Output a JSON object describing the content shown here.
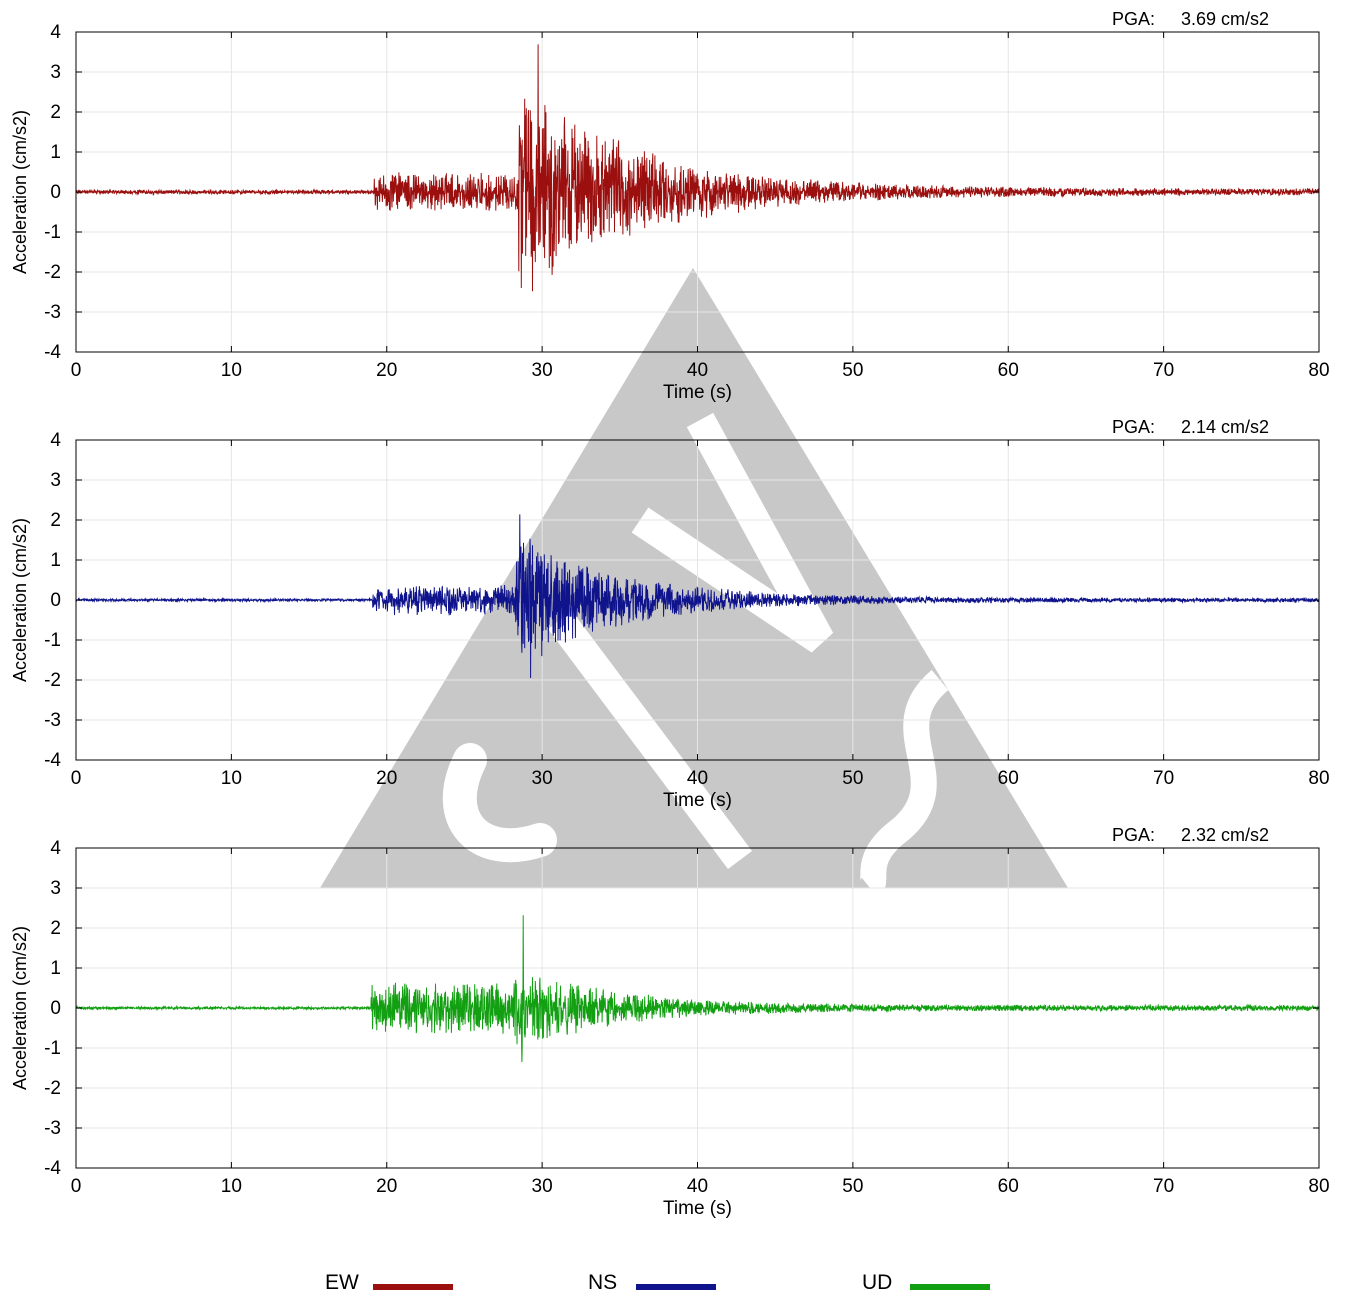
{
  "chart_data": [
    {
      "type": "line",
      "series": [
        {
          "name": "EW",
          "color": "#9b0f0f"
        }
      ],
      "pga_label": "PGA:",
      "pga_value": "3.69 cm/s2",
      "peak": 3.69,
      "trough": -2.4,
      "xlabel": "Time (s)",
      "ylabel": "Acceleration (cm/s2)",
      "xlim": [
        0,
        80
      ],
      "ylim": [
        -4,
        4
      ],
      "xticks": [
        "0",
        "10",
        "20",
        "30",
        "40",
        "50",
        "60",
        "70",
        "80"
      ],
      "yticks": [
        "4",
        "3",
        "2",
        "1",
        "0",
        "-1",
        "-2",
        "-3",
        "-4"
      ],
      "grid": true,
      "envelope": {
        "pre": 0.05,
        "p_arrival": 19.2,
        "p_amp": 0.45,
        "s_arrival": 28.5,
        "s_amp": 2.6,
        "decay": 7.5,
        "coda_floor": 0.08
      }
    },
    {
      "type": "line",
      "series": [
        {
          "name": "NS",
          "color": "#0f148c"
        }
      ],
      "pga_label": "PGA:",
      "pga_value": "2.14 cm/s2",
      "peak": 2.14,
      "trough": -1.95,
      "xlabel": "Time (s)",
      "ylabel": "Acceleration (cm/s2)",
      "xlim": [
        0,
        80
      ],
      "ylim": [
        -4,
        4
      ],
      "xticks": [
        "0",
        "10",
        "20",
        "30",
        "40",
        "50",
        "60",
        "70",
        "80"
      ],
      "yticks": [
        "4",
        "3",
        "2",
        "1",
        "0",
        "-1",
        "-2",
        "-3",
        "-4"
      ],
      "grid": true,
      "envelope": {
        "pre": 0.03,
        "p_arrival": 19.1,
        "p_amp": 0.35,
        "s_arrival": 28.3,
        "s_amp": 1.6,
        "decay": 6.5,
        "coda_floor": 0.05
      }
    },
    {
      "type": "line",
      "series": [
        {
          "name": "UD",
          "color": "#12a012"
        }
      ],
      "pga_label": "PGA:",
      "pga_value": "2.32 cm/s2",
      "peak": 2.32,
      "trough": -1.35,
      "xlabel": "Time (s)",
      "ylabel": "Acceleration (cm/s2)",
      "xlim": [
        0,
        80
      ],
      "ylim": [
        -4,
        4
      ],
      "xticks": [
        "0",
        "10",
        "20",
        "30",
        "40",
        "50",
        "60",
        "70",
        "80"
      ],
      "yticks": [
        "4",
        "3",
        "2",
        "1",
        "0",
        "-1",
        "-2",
        "-3",
        "-4"
      ],
      "grid": true,
      "envelope": {
        "pre": 0.03,
        "p_arrival": 19.0,
        "p_amp": 0.6,
        "s_arrival": 28.2,
        "s_amp": 1.0,
        "decay": 6.0,
        "coda_floor": 0.07
      }
    }
  ],
  "legend": [
    {
      "label": "EW",
      "color": "#9b0f0f"
    },
    {
      "label": "NS",
      "color": "#0f148c"
    },
    {
      "label": "UD",
      "color": "#12a012"
    }
  ],
  "watermark": {
    "color": "#c8c8c8"
  }
}
